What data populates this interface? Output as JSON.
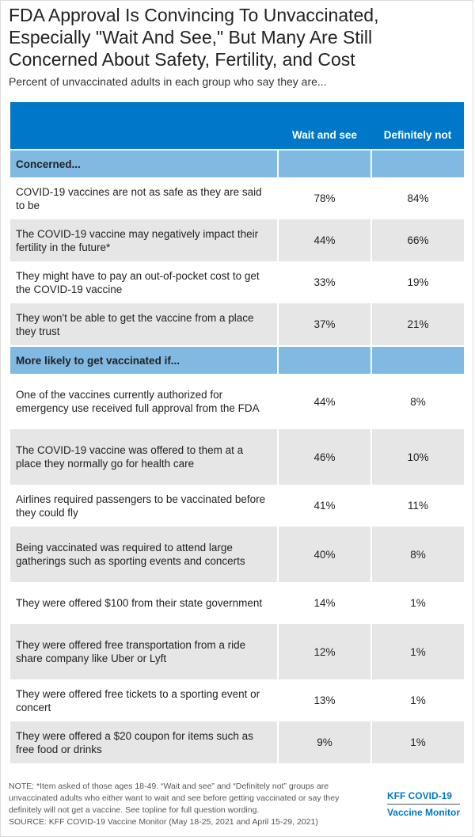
{
  "chart_data": {
    "type": "table",
    "title": "FDA Approval Is Convincing To Unvaccinated, Especially \"Wait And See,\" But Many Are Still Concerned About Safety, Fertility, and Cost",
    "subtitle": "Percent of unvaccinated adults in each group who say they are...",
    "columns": [
      "",
      "Wait and see",
      "Definitely not"
    ],
    "sections": [
      {
        "label": "Concerned...",
        "rows": [
          {
            "label": "COVID-19 vaccines are not as safe as they are said to be",
            "values": [
              "78%",
              "84%"
            ]
          },
          {
            "label": "The COVID-19 vaccine may negatively impact their fertility in the future*",
            "values": [
              "44%",
              "66%"
            ]
          },
          {
            "label": "They might have to pay an out-of-pocket cost to get the COVID-19 vaccine",
            "values": [
              "33%",
              "19%"
            ]
          },
          {
            "label": "They won't be able to get the vaccine from a place they trust",
            "values": [
              "37%",
              "21%"
            ]
          }
        ]
      },
      {
        "label": "More likely to get vaccinated if...",
        "rows": [
          {
            "label": "One of the vaccines currently authorized for emergency use received full approval from the FDA",
            "values": [
              "44%",
              "8%"
            ]
          },
          {
            "label": "The COVID-19 vaccine was offered to them at a place they normally go for health care",
            "values": [
              "46%",
              "10%"
            ]
          },
          {
            "label": "Airlines required passengers to be vaccinated before they could fly",
            "values": [
              "41%",
              "11%"
            ]
          },
          {
            "label": "Being vaccinated was required to attend large gatherings such as sporting events and concerts",
            "values": [
              "40%",
              "8%"
            ]
          },
          {
            "label": "They were offered $100 from their state government",
            "values": [
              "14%",
              "1%"
            ]
          },
          {
            "label": "They were offered free transportation from a ride share company like Uber or Lyft",
            "values": [
              "12%",
              "1%"
            ]
          },
          {
            "label": "They were offered free tickets to a sporting event or concert",
            "values": [
              "13%",
              "1%"
            ]
          },
          {
            "label": "They were offered a $20 coupon for items such as free food or drinks",
            "values": [
              "9%",
              "1%"
            ]
          }
        ]
      }
    ],
    "note": "NOTE: *Item asked of those ages 18-49. “Wait and see” and “Definitely not” groups are unvaccinated adults who either want to wait and see before getting vaccinated or say they definitely will not get a vaccine. See topline for full question wording.",
    "source": "SOURCE: KFF COVID-19 Vaccine Monitor (May 18-25, 2021 and April 15-29, 2021)",
    "colors": {
      "header": "#0077c8",
      "section": "#80b9e2",
      "stripe": "#e6e6e6"
    }
  },
  "logo": {
    "line1": "KFF COVID-19",
    "line2": "Vaccine Monitor"
  }
}
